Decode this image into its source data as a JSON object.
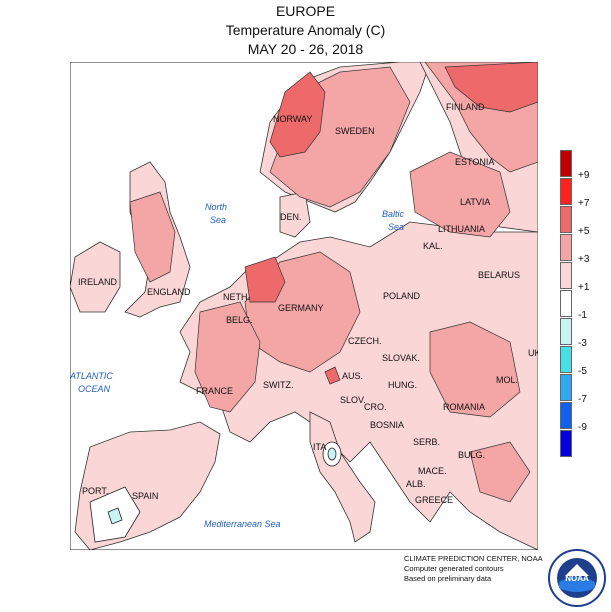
{
  "title": {
    "line1": "EUROPE",
    "line2": "Temperature Anomaly (C)",
    "line3": "MAY 20 - 26, 2018"
  },
  "legend": {
    "items": [
      {
        "label": "+9",
        "color": "#c00000"
      },
      {
        "label": "+7",
        "color": "#ff2020"
      },
      {
        "label": "+5",
        "color": "#ee6a6a"
      },
      {
        "label": "+3",
        "color": "#f4a6a6"
      },
      {
        "label": "+1",
        "color": "#fbd6d6"
      },
      {
        "label": "-1",
        "color": "#ffffff"
      },
      {
        "label": "-3",
        "color": "#c8f4f4"
      },
      {
        "label": "-5",
        "color": "#48e0e8"
      },
      {
        "label": "-7",
        "color": "#30a8f0"
      },
      {
        "label": "-9",
        "color": "#1060f0"
      },
      {
        "label": "",
        "color": "#0000e0"
      }
    ]
  },
  "labels": {
    "norway": "NORWAY",
    "sweden": "SWEDEN",
    "finland": "FINLAND",
    "estonia": "ESTONIA",
    "latvia": "LATVIA",
    "lithuania": "LITHUANIA",
    "kal": "KAL.",
    "belarus": "BELARUS",
    "den": "DEN.",
    "ireland": "IRELAND",
    "england": "ENGLAND",
    "neth": "NETH.",
    "belg": "BELG.",
    "germany": "GERMANY",
    "poland": "POLAND",
    "czech": "CZECH.",
    "slovak": "SLOVAK.",
    "uk": "UK",
    "france": "FRANCE",
    "switz": "SWITZ.",
    "aus": "AUS.",
    "hung": "HUNG.",
    "mol": "MOL.",
    "romania": "ROMANIA",
    "slov": "SLOV.",
    "cro": "CRO.",
    "bosnia": "BOSNIA",
    "serb": "SERB.",
    "bulg": "BULG.",
    "ita": "ITA",
    "mace": "MACE.",
    "alb": "ALB.",
    "greece": "GREECE",
    "port": "PORT.",
    "spain": "SPAIN"
  },
  "seas": {
    "north1": "North",
    "north2": "Sea",
    "baltic1": "Baltic",
    "baltic2": "Sea",
    "atlantic1": "ATLANTIC",
    "atlantic2": "OCEAN",
    "med": "Mediterranean Sea"
  },
  "credit": {
    "line1": "CLIMATE PREDICTION CENTER, NOAA",
    "line2": "Computer generated contours",
    "line3": "Based on preliminary data"
  },
  "logo": {
    "text": "NOAA"
  }
}
